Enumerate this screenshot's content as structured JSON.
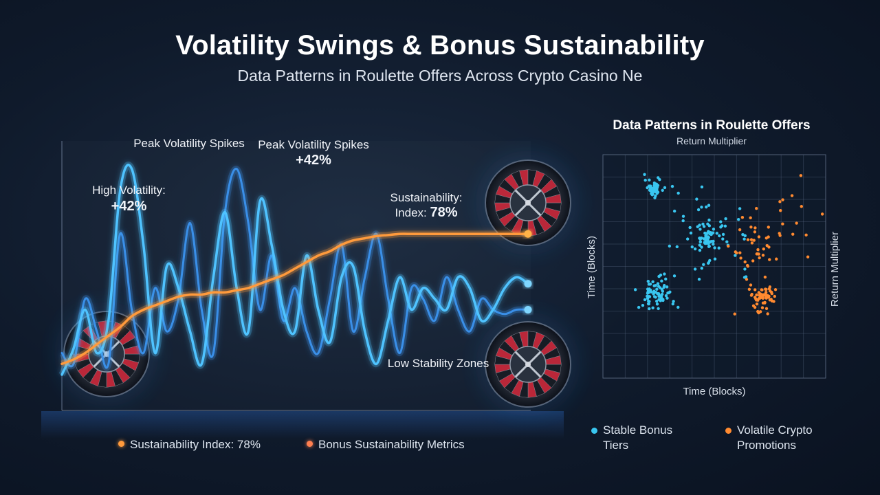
{
  "title": "Volatility Swings & Bonus Sustainability",
  "subtitle": "Data Patterns in Roulette Offers Across Crypto Casino Ne",
  "colors": {
    "volatility_primary": "#4fc3ff",
    "volatility_secondary": "#3a8fe8",
    "sustainability": "#ff9a3c",
    "stable": "#39c6f0",
    "volatile": "#ff8a30",
    "background": "#0f1a2b"
  },
  "annotations": {
    "peak1_label": "Peak Volatility Spikes",
    "peak2_label": "Peak Volatility Spikes",
    "peak2_value": "+42%",
    "high_vol_label": "High Volatility:",
    "high_vol_value": "+42%",
    "sustain_label": "Sustainability:",
    "sustain_index_label": "Index:",
    "sustain_index_value": "78%",
    "low_stability": "Low Stability Zones"
  },
  "legend": [
    {
      "label": "Sustainability Index: 78%",
      "color": "#ff9a3c"
    },
    {
      "label": "Bonus Sustainability Metrics",
      "color": "#ff7f50"
    }
  ],
  "decor_icons": [
    "roulette-wheel-icon",
    "roulette-wheel-icon",
    "roulette-wheel-icon"
  ],
  "chart_data": [
    {
      "type": "line",
      "x": [
        0,
        1,
        2,
        3,
        4,
        5,
        6,
        7,
        8,
        9,
        10,
        11,
        12,
        13,
        14,
        15,
        16,
        17,
        18,
        19,
        20,
        21,
        22,
        23,
        24,
        25,
        26,
        27,
        28,
        29,
        30,
        31,
        32,
        33,
        34,
        35,
        36,
        37,
        38,
        39,
        40
      ],
      "series": [
        {
          "role": "volatility-primary",
          "values": [
            0.0,
            0.12,
            0.3,
            0.1,
            0.25,
            0.85,
            0.95,
            0.6,
            0.1,
            0.5,
            0.4,
            0.2,
            0.05,
            0.45,
            0.75,
            0.4,
            0.2,
            0.8,
            0.6,
            0.3,
            0.2,
            0.55,
            0.3,
            0.15,
            0.45,
            0.5,
            0.2,
            0.05,
            0.25,
            0.45,
            0.3,
            0.4,
            0.35,
            0.3,
            0.45,
            0.4,
            0.25,
            0.3,
            0.4,
            0.45,
            0.42
          ]
        },
        {
          "role": "volatility-secondary",
          "values": [
            0.1,
            0.05,
            0.35,
            0.2,
            0.05,
            0.65,
            0.3,
            0.1,
            0.4,
            0.2,
            0.35,
            0.7,
            0.3,
            0.1,
            0.75,
            0.95,
            0.7,
            0.3,
            0.55,
            0.25,
            0.4,
            0.2,
            0.1,
            0.35,
            0.6,
            0.2,
            0.45,
            0.65,
            0.35,
            0.1,
            0.4,
            0.35,
            0.25,
            0.45,
            0.3,
            0.2,
            0.35,
            0.3,
            0.28,
            0.3,
            0.3
          ]
        },
        {
          "role": "sustainability-index",
          "values": [
            0.05,
            0.07,
            0.1,
            0.14,
            0.18,
            0.22,
            0.27,
            0.3,
            0.32,
            0.34,
            0.36,
            0.37,
            0.37,
            0.38,
            0.38,
            0.39,
            0.4,
            0.42,
            0.44,
            0.46,
            0.49,
            0.52,
            0.55,
            0.57,
            0.6,
            0.62,
            0.63,
            0.64,
            0.645,
            0.65,
            0.65,
            0.65,
            0.65,
            0.65,
            0.65,
            0.65,
            0.65,
            0.65,
            0.65,
            0.65,
            0.65
          ]
        }
      ],
      "grid": false
    },
    {
      "type": "scatter",
      "title": "Data Patterns in Roulette Offers",
      "subtitle": "Return Multiplier",
      "xlabel": "Time (Blocks)",
      "ylabel": "Time (Blocks)",
      "y2label": "Return Multiplier",
      "xlim": [
        0,
        10
      ],
      "ylim": [
        0,
        10
      ],
      "grid": true,
      "series": [
        {
          "name": "Stable Bonus Tiers",
          "color": "#39c6f0",
          "clusters": [
            {
              "center": [
                2.3,
                8.5
              ],
              "spread": 0.35,
              "count": 45
            },
            {
              "center": [
                4.6,
                6.2
              ],
              "spread": 0.35,
              "count": 40
            },
            {
              "center": [
                2.4,
                3.8
              ],
              "spread": 0.7,
              "count": 75
            },
            {
              "center": [
                4.9,
                6.5
              ],
              "spread": 1.4,
              "count": 60
            }
          ]
        },
        {
          "name": "Volatile Crypto Promotions",
          "color": "#ff8a30",
          "clusters": [
            {
              "center": [
                7.2,
                3.6
              ],
              "spread": 0.5,
              "count": 60
            },
            {
              "center": [
                6.8,
                6.0
              ],
              "spread": 1.0,
              "count": 35
            },
            {
              "center": [
                8.2,
                7.5
              ],
              "spread": 1.5,
              "count": 15
            }
          ]
        }
      ],
      "legend": [
        {
          "label": "Stable Bonus Tiers",
          "color": "#39c6f0"
        },
        {
          "label": "Volatile Crypto Promotions",
          "color": "#ff8a30"
        }
      ]
    }
  ]
}
